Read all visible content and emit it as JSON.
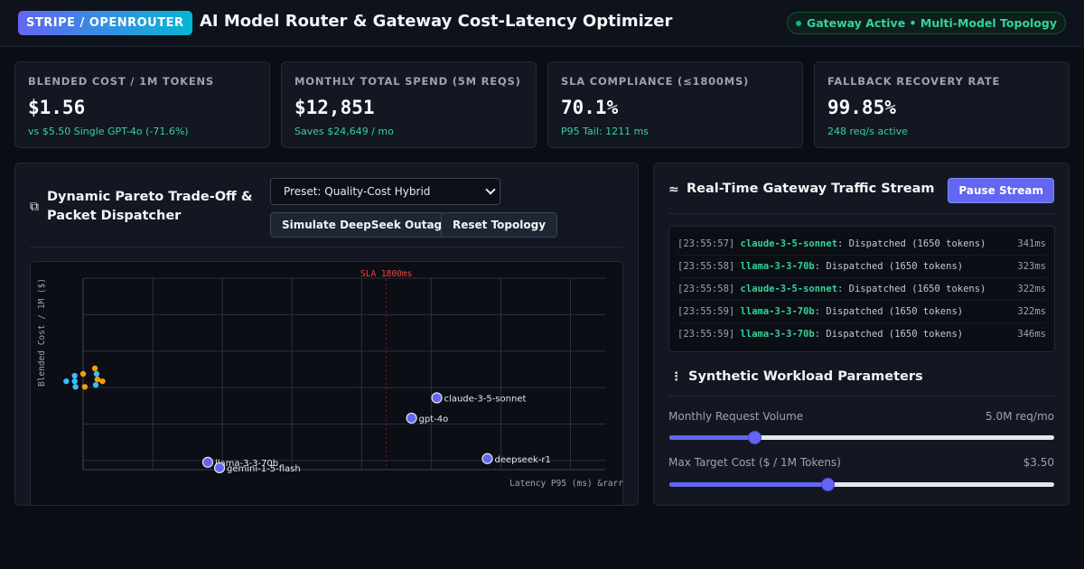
{
  "header": {
    "brand": "STRIPE / OPENROUTER",
    "title": "AI Model Router & Gateway Cost-Latency Optimizer",
    "status": "Gateway Active • Multi-Model Topology"
  },
  "kpis": [
    {
      "label": "BLENDED COST / 1M TOKENS",
      "value": "$1.56",
      "sub": "vs $5.50 Single GPT-4o (-71.6%)"
    },
    {
      "label": "MONTHLY TOTAL SPEND (5M REQS)",
      "value": "$12,851",
      "sub": "Saves $24,649 / mo"
    },
    {
      "label": "SLA COMPLIANCE (≤1800MS)",
      "value": "70.1%",
      "sub": "P95 Tail: 1211 ms"
    },
    {
      "label": "FALLBACK RECOVERY RATE",
      "value": "99.85%",
      "sub": "248 req/s active"
    }
  ],
  "pareto": {
    "icon": "layers-icon",
    "title": "Dynamic Pareto Trade-Off & Packet Dispatcher",
    "preset": "Preset: Quality-Cost Hybrid",
    "simulate_label": "Simulate DeepSeek Outage",
    "reset_label": "Reset Topology"
  },
  "chart_data": {
    "type": "scatter",
    "xlabel": "Latency P95 (ms) &rarr",
    "ylabel": "Blended Cost / 1M ($)",
    "sla_label": "SLA 1800ms",
    "sla_x": 1800,
    "xlim": [
      0,
      3100
    ],
    "ylim": [
      0,
      5.2
    ],
    "grid": true,
    "models": [
      {
        "name": "claude-3-5-sonnet",
        "x": 2100,
        "y": 1.95
      },
      {
        "name": "gpt-4o",
        "x": 1950,
        "y": 1.4
      },
      {
        "name": "llama-3-3-70b",
        "x": 740,
        "y": 0.2
      },
      {
        "name": "gemini-1-5-flash",
        "x": 810,
        "y": 0.05
      },
      {
        "name": "deepseek-r1",
        "x": 2400,
        "y": 0.3
      }
    ],
    "packets": [
      {
        "x": -100,
        "y": 2.4,
        "color": "#38bdf8"
      },
      {
        "x": -50,
        "y": 2.55,
        "color": "#38bdf8"
      },
      {
        "x": -50,
        "y": 2.4,
        "color": "#38bdf8"
      },
      {
        "x": -45,
        "y": 2.25,
        "color": "#38bdf8"
      },
      {
        "x": 0,
        "y": 2.6,
        "color": "#f59e0b"
      },
      {
        "x": 10,
        "y": 2.25,
        "color": "#f59e0b"
      },
      {
        "x": 75,
        "y": 2.3,
        "color": "#38bdf8"
      },
      {
        "x": 70,
        "y": 2.75,
        "color": "#f59e0b"
      },
      {
        "x": 85,
        "y": 2.45,
        "color": "#f59e0b"
      },
      {
        "x": 80,
        "y": 2.6,
        "color": "#38bdf8"
      },
      {
        "x": 115,
        "y": 2.4,
        "color": "#f59e0b"
      }
    ]
  },
  "stream": {
    "icon": "waves-icon",
    "title": "Real-Time Gateway Traffic Stream",
    "pause_label": "Pause Stream",
    "rows": [
      {
        "time": "[23:55:57]",
        "model": "claude-3-5-sonnet",
        "msg": ": Dispatched (1650 tokens)",
        "ms": "341ms"
      },
      {
        "time": "[23:55:58]",
        "model": "llama-3-3-70b",
        "msg": ": Dispatched (1650 tokens)",
        "ms": "323ms"
      },
      {
        "time": "[23:55:58]",
        "model": "claude-3-5-sonnet",
        "msg": ": Dispatched (1650 tokens)",
        "ms": "322ms"
      },
      {
        "time": "[23:55:59]",
        "model": "llama-3-3-70b",
        "msg": ": Dispatched (1650 tokens)",
        "ms": "322ms"
      },
      {
        "time": "[23:55:59]",
        "model": "llama-3-3-70b",
        "msg": ": Dispatched (1650 tokens)",
        "ms": "346ms"
      }
    ]
  },
  "workload": {
    "icon": "sliders-icon",
    "title": "Synthetic Workload Parameters",
    "params": [
      {
        "label": "Monthly Request Volume",
        "value": "5.0M req/mo",
        "fraction": 0.22
      },
      {
        "label": "Max Target Cost ($ / 1M Tokens)",
        "value": "$3.50",
        "fraction": 0.41
      }
    ]
  }
}
